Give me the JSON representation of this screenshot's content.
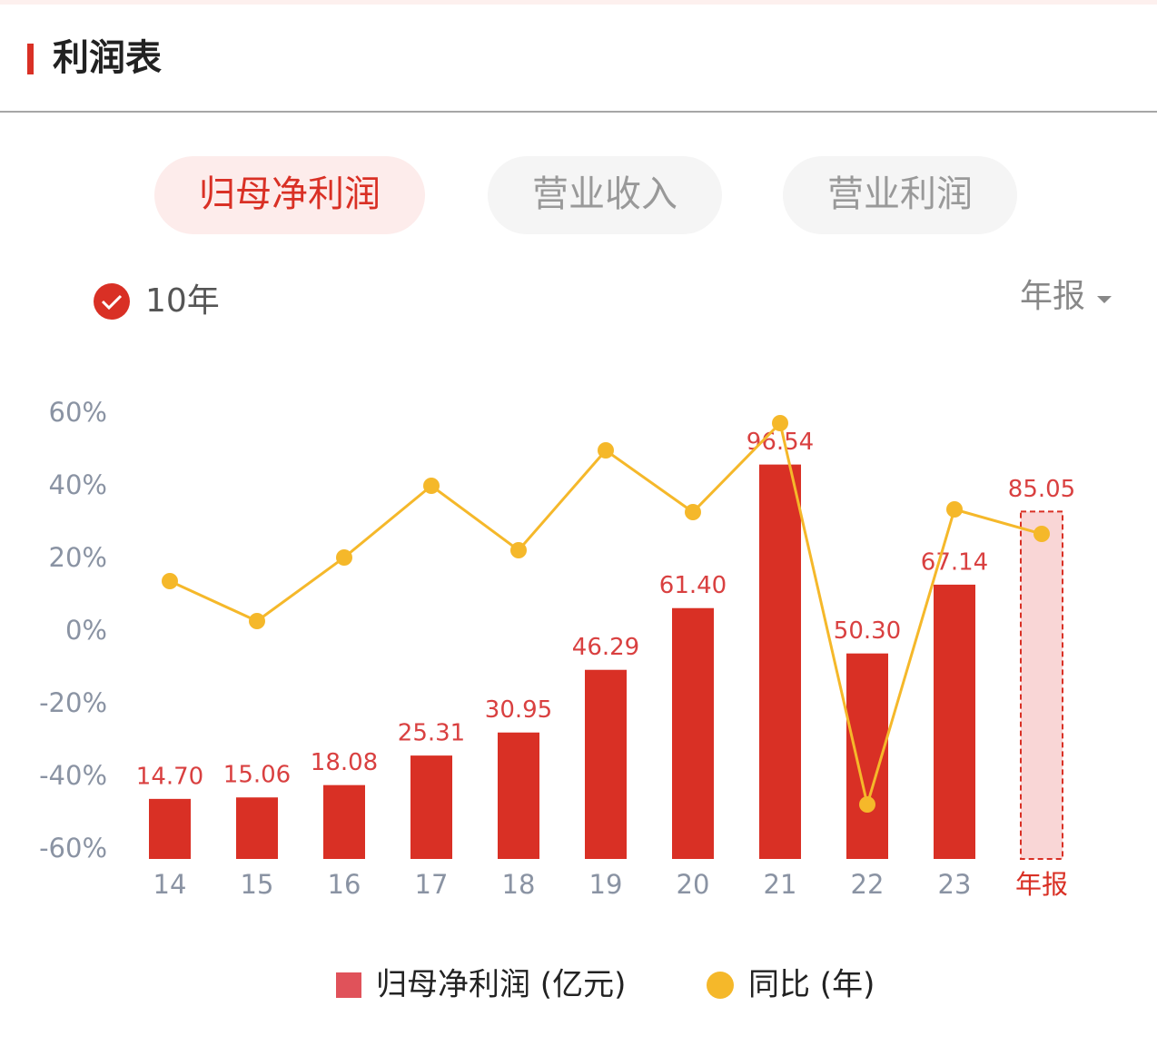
{
  "header": {
    "title": "利润表"
  },
  "tabs": [
    "归母净利润",
    "营业收入",
    "营业利润"
  ],
  "active_tab": 0,
  "range_option": "10年",
  "period_selector": "年报",
  "chart_data": {
    "type": "bar-line",
    "categories": [
      "14",
      "15",
      "16",
      "17",
      "18",
      "19",
      "20",
      "21",
      "22",
      "23",
      "年报"
    ],
    "series": [
      {
        "name": "归母净利润 (亿元)",
        "type": "bar",
        "axis": "y2",
        "color": "#d93025",
        "legend_color": "#e0525a",
        "estimate_fill": "#f9d6d6",
        "values": [
          14.7,
          15.06,
          18.08,
          25.31,
          30.95,
          46.29,
          61.4,
          96.54,
          50.3,
          67.14,
          85.05
        ],
        "value_labels": [
          "14.70",
          "15.06",
          "18.08",
          "25.31",
          "30.95",
          "46.29",
          "61.40",
          "96.54",
          "50.30",
          "67.14",
          "85.05"
        ]
      },
      {
        "name": "同比 (年)",
        "type": "line",
        "color": "#f5b82a",
        "values": [
          14,
          3,
          20.5,
          40.25,
          22.5,
          50,
          33,
          57.5,
          -47.5,
          33.75,
          27
        ]
      }
    ],
    "ylim": [
      -62.5,
      60
    ],
    "yticks": [
      {
        "value": 60,
        "label": "60%"
      },
      {
        "value": 40,
        "label": "40%"
      },
      {
        "value": 20,
        "label": "20%"
      },
      {
        "value": 0,
        "label": "0%"
      },
      {
        "value": -20,
        "label": "-20%"
      },
      {
        "value": -40,
        "label": "-40%"
      },
      {
        "value": -60,
        "label": "-60%"
      }
    ],
    "y2lim": [
      0,
      108.9
    ],
    "highlight_color": "#d93025"
  }
}
